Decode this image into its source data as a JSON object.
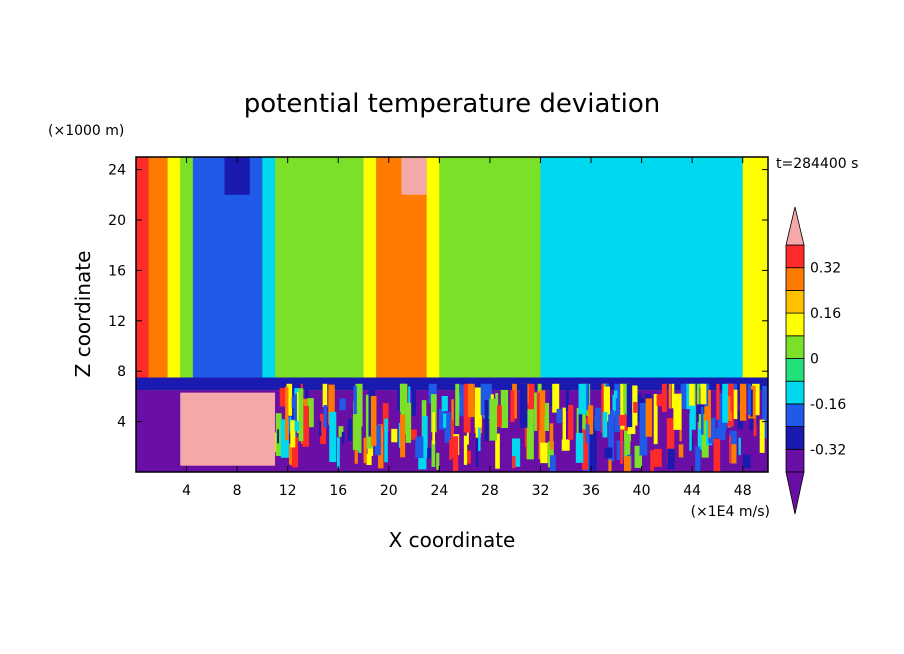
{
  "chart_data": {
    "type": "heatmap",
    "title": "potential temperature deviation",
    "xlabel": "X coordinate",
    "ylabel": "Z coordinate",
    "x_unit": "(×1E4 m/s)",
    "y_unit": "(×1000 m)",
    "time_label": "t=284400 s",
    "xlim": [
      0,
      50
    ],
    "ylim": [
      0,
      25
    ],
    "x_ticks": [
      4,
      8,
      12,
      16,
      20,
      24,
      28,
      32,
      36,
      40,
      44,
      48
    ],
    "y_ticks": [
      4,
      8,
      12,
      16,
      20,
      24
    ],
    "colorbar": {
      "levels": [
        -0.4,
        -0.32,
        -0.24,
        -0.16,
        -0.08,
        0,
        0.08,
        0.16,
        0.24,
        0.32,
        0.4
      ],
      "labels": [
        "-0.32",
        "-0.16",
        "0",
        "0.16",
        "0.32"
      ],
      "label_values": [
        -0.32,
        -0.16,
        0,
        0.16,
        0.32
      ],
      "colors": [
        "#6a0fa6",
        "#1a1ab0",
        "#1f5ae8",
        "#00d8f0",
        "#22e07a",
        "#7ae028",
        "#ffff00",
        "#ffc000",
        "#ff7a00",
        "#ff2a2a"
      ],
      "under_color": "#6a0fa6",
      "over_color": "#f5a8a8",
      "extend": "both"
    },
    "regions": [
      {
        "x": [
          0,
          1
        ],
        "z": [
          0.5,
          25
        ],
        "value": 0.36
      },
      {
        "x": [
          1,
          2.5
        ],
        "z": [
          7,
          25
        ],
        "value": 0.3
      },
      {
        "x": [
          2.5,
          3.5
        ],
        "z": [
          7,
          25
        ],
        "value": 0.12
      },
      {
        "x": [
          3.5,
          4.5
        ],
        "z": [
          7,
          25
        ],
        "value": 0.04
      },
      {
        "x": [
          4.5,
          10
        ],
        "z": [
          7,
          25
        ],
        "value": -0.2
      },
      {
        "x": [
          7,
          9
        ],
        "z": [
          22,
          25
        ],
        "value": -0.3
      },
      {
        "x": [
          10,
          11
        ],
        "z": [
          7,
          25
        ],
        "value": -0.1
      },
      {
        "x": [
          11,
          18
        ],
        "z": [
          7,
          25
        ],
        "value": 0.02
      },
      {
        "x": [
          18,
          19
        ],
        "z": [
          7,
          25
        ],
        "value": 0.12
      },
      {
        "x": [
          19,
          23
        ],
        "z": [
          7,
          25
        ],
        "value": 0.3
      },
      {
        "x": [
          21,
          23
        ],
        "z": [
          22,
          25
        ],
        "value": 0.4
      },
      {
        "x": [
          23,
          24
        ],
        "z": [
          7,
          25
        ],
        "value": 0.1
      },
      {
        "x": [
          24,
          32
        ],
        "z": [
          7,
          25
        ],
        "value": 0.02
      },
      {
        "x": [
          32,
          48
        ],
        "z": [
          7,
          25
        ],
        "value": -0.1
      },
      {
        "x": [
          48,
          50
        ],
        "z": [
          7,
          25
        ],
        "value": 0.12
      },
      {
        "x": [
          0,
          50
        ],
        "z": [
          6.5,
          7.5
        ],
        "value": -0.3
      },
      {
        "x": [
          0,
          50
        ],
        "z": [
          0,
          6.5
        ],
        "value": -0.4
      },
      {
        "x": [
          3.5,
          11
        ],
        "z": [
          0.5,
          6.3
        ],
        "value": 0.4
      }
    ]
  }
}
